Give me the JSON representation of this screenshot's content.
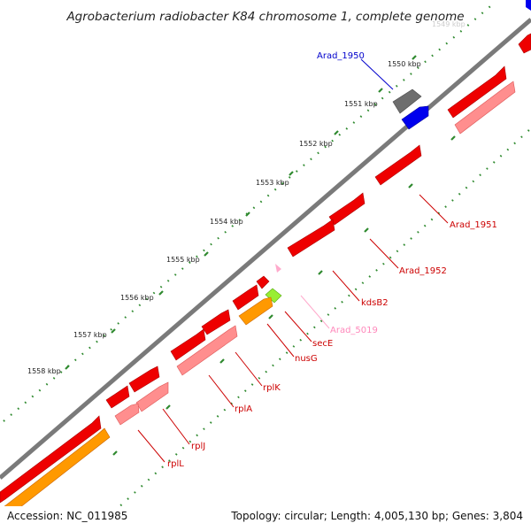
{
  "title": "Agrobacterium radiobacter K84 chromosome 1, complete genome",
  "footer": {
    "accession": "Accession: NC_011985",
    "summary": "Topology: circular; Length: 4,005,130 bp; Genes: 3,804"
  },
  "ticks": [
    "1550 kbp",
    "1551 kbp",
    "1552 kbp",
    "1553 kbp",
    "1554 kbp",
    "1555 kbp",
    "1556 kbp",
    "1557 kbp",
    "1558 kbp"
  ],
  "colors": {
    "gene_red": "#ff0000",
    "gene_light_red": "#ff9090",
    "gene_blue": "#0000ee",
    "gene_gray": "#707070",
    "gene_orange": "#ff9900",
    "gene_green": "#99ee33",
    "gene_pink": "#ffaacc",
    "backbone": "#888888",
    "dots_green": "#338833"
  },
  "gene_labels": [
    {
      "name": "Arad_1950",
      "color": "#0000cc"
    },
    {
      "name": "Arad_1951",
      "color": "#cc0000"
    },
    {
      "name": "Arad_1952",
      "color": "#cc0000"
    },
    {
      "name": "kdsB2",
      "color": "#cc0000"
    },
    {
      "name": "Arad_5019",
      "color": "#ff88bb"
    },
    {
      "name": "secE",
      "color": "#cc0000"
    },
    {
      "name": "nusG",
      "color": "#cc0000"
    },
    {
      "name": "rplK",
      "color": "#cc0000"
    },
    {
      "name": "rplA",
      "color": "#cc0000"
    },
    {
      "name": "rplJ",
      "color": "#cc0000"
    },
    {
      "name": "rplL",
      "color": "#cc0000"
    }
  ]
}
